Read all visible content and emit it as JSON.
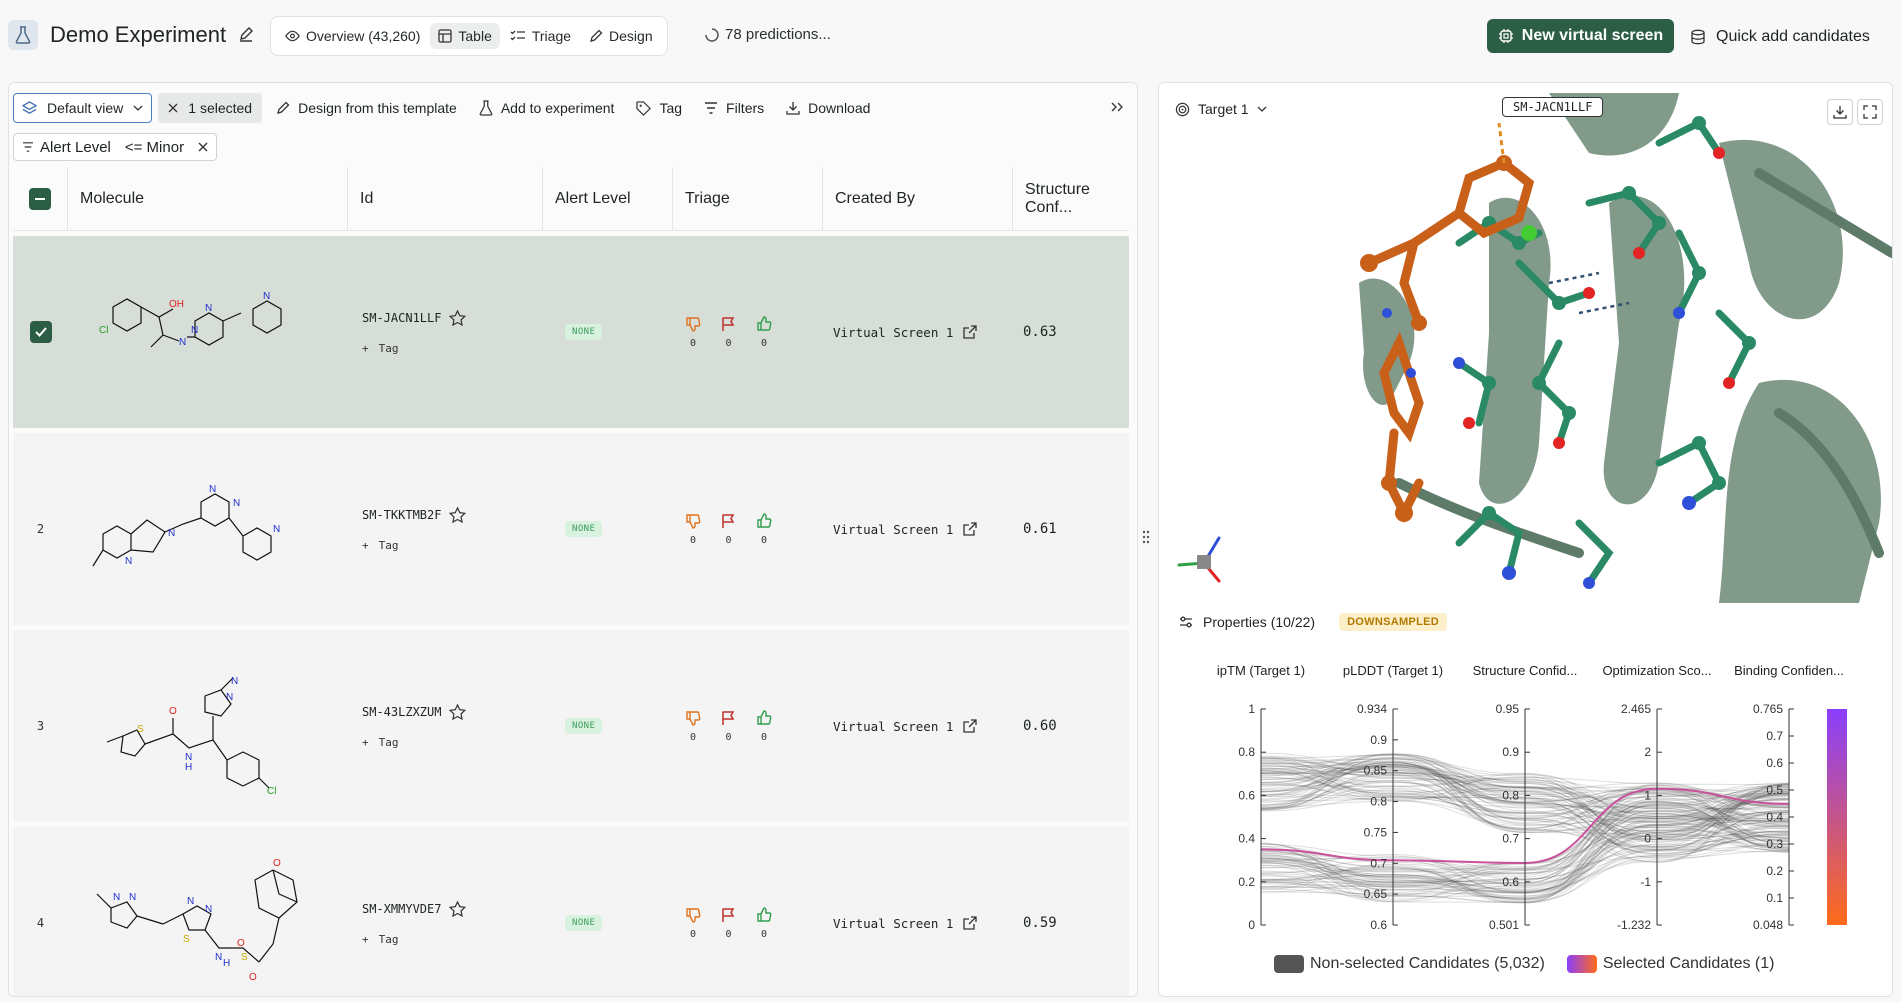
{
  "header": {
    "title": "Demo Experiment",
    "tabs": [
      {
        "label": "Overview (43,260)",
        "icon": "eye-icon"
      },
      {
        "label": "Table",
        "icon": "table-icon"
      },
      {
        "label": "Triage",
        "icon": "list-check-icon"
      },
      {
        "label": "Design",
        "icon": "pencil-icon"
      }
    ],
    "predictions": "78 predictions...",
    "new_screen_label": "New virtual screen",
    "quick_add_label": "Quick add candidates"
  },
  "toolbar": {
    "view": "Default view",
    "selected": "1 selected",
    "design": "Design from this template",
    "add": "Add to experiment",
    "tag": "Tag",
    "filters": "Filters",
    "download": "Download"
  },
  "filter": {
    "field": "Alert Level",
    "op": "<= Minor"
  },
  "table": {
    "columns": [
      "Molecule",
      "Id",
      "Alert Level",
      "Triage",
      "Created By",
      "Structure Conf..."
    ],
    "rows": [
      {
        "index": "",
        "id": "SM-JACN1LLF",
        "tag": "Tag",
        "alert": "NONE",
        "down": "0",
        "flag": "0",
        "up": "0",
        "created": "Virtual Screen 1",
        "conf": "0.63"
      },
      {
        "index": "2",
        "id": "SM-TKKTMB2F",
        "tag": "Tag",
        "alert": "NONE",
        "down": "0",
        "flag": "0",
        "up": "0",
        "created": "Virtual Screen 1",
        "conf": "0.61"
      },
      {
        "index": "3",
        "id": "SM-43LZXZUM",
        "tag": "Tag",
        "alert": "NONE",
        "down": "0",
        "flag": "0",
        "up": "0",
        "created": "Virtual Screen 1",
        "conf": "0.60"
      },
      {
        "index": "4",
        "id": "SM-XMMYVDE7",
        "tag": "Tag",
        "alert": "NONE",
        "down": "0",
        "flag": "0",
        "up": "0",
        "created": "Virtual Screen 1",
        "conf": "0.59"
      }
    ],
    "molecule_atoms": {
      "r1": [
        "OH",
        "Cl",
        "N",
        "N",
        "N",
        "N"
      ],
      "r2": [
        "N",
        "N",
        "N",
        "N",
        "N"
      ],
      "r3": [
        "N",
        "N",
        "O",
        "S",
        "N",
        "H",
        "Cl"
      ],
      "r4": [
        "N",
        "N",
        "N",
        "N",
        "S",
        "O",
        "N",
        "H",
        "S",
        "O",
        "O"
      ]
    }
  },
  "viewer": {
    "target": "Target 1",
    "label": "SM-JACN1LLF"
  },
  "properties": {
    "title": "Properties (10/22)",
    "badge": "DOWNSAMPLED"
  },
  "chart_data": {
    "type": "parallel-coordinates",
    "axes": [
      {
        "name": "ipTM (Target 1)",
        "ticks": [
          "1",
          "0.8",
          "0.6",
          "0.4",
          "0.2",
          "0"
        ]
      },
      {
        "name": "pLDDT (Target 1)",
        "ticks": [
          "0.934",
          "0.9",
          "0.85",
          "0.8",
          "0.75",
          "0.7",
          "0.65",
          "0.6"
        ]
      },
      {
        "name": "Structure Confid...",
        "ticks": [
          "0.95",
          "0.9",
          "0.8",
          "0.7",
          "0.6",
          "0.501"
        ]
      },
      {
        "name": "Optimization Sco...",
        "ticks": [
          "2.465",
          "2",
          "1",
          "0",
          "-1",
          "-1.232"
        ]
      },
      {
        "name": "Binding Confiden...",
        "ticks": [
          "0.765",
          "0.7",
          "0.6",
          "0.5",
          "0.4",
          "0.3",
          "0.2",
          "0.1",
          "0.048"
        ]
      }
    ],
    "selected_line": [
      0.35,
      0.7,
      0.63,
      1.1,
      0.45
    ],
    "legend": [
      "Non-selected Candidates (5,032)",
      "Selected Candidates (1)"
    ],
    "colors": {
      "nonselected": "#555555",
      "selected": "#c9509b",
      "grad_top": "#8a3ffc",
      "grad_bottom": "#ff6b1a"
    }
  }
}
